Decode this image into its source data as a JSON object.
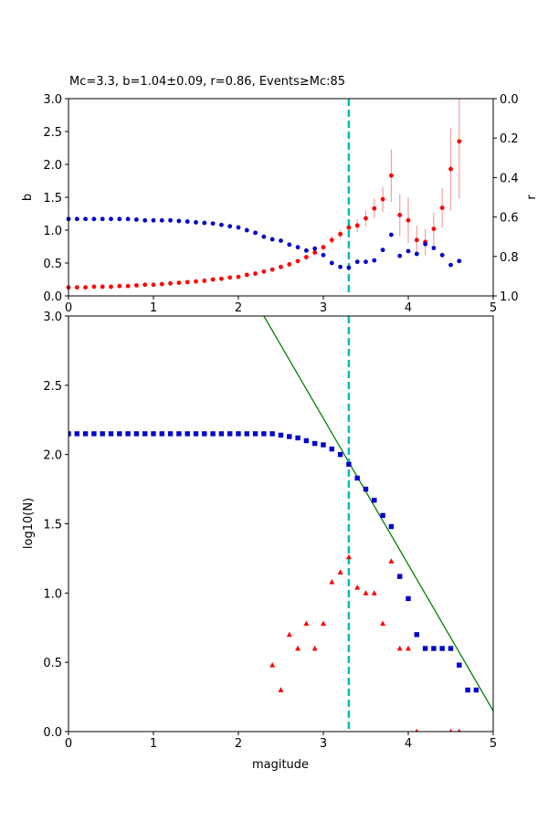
{
  "chart_data": [
    {
      "type": "scatter",
      "title": "Mc=3.3, b=1.04±0.09, r=0.86, Events≥Mc:85",
      "xlabel": "",
      "ylabel": "b",
      "y2label": "r",
      "xlim": [
        0,
        5
      ],
      "ylim": [
        0,
        3
      ],
      "y2lim": [
        1.0,
        0.0
      ],
      "y2_inverted": true,
      "x_ticks": [
        "0",
        "1",
        "2",
        "3",
        "4",
        "5"
      ],
      "y_ticks": [
        "0.0",
        "0.5",
        "1.0",
        "1.5",
        "2.0",
        "2.5",
        "3.0"
      ],
      "y2_ticks": [
        "0.0",
        "0.2",
        "0.4",
        "0.6",
        "0.8",
        "1.0"
      ],
      "mc_line": 3.3,
      "colors": {
        "b": "#ff0000",
        "r": "#0000cc",
        "err": "#f4a0a0",
        "mc": "#00bfbf"
      },
      "series": [
        {
          "name": "b",
          "axis": "left",
          "x": [
            0.0,
            0.1,
            0.2,
            0.3,
            0.4,
            0.5,
            0.6,
            0.7,
            0.8,
            0.9,
            1.0,
            1.1,
            1.2,
            1.3,
            1.4,
            1.5,
            1.6,
            1.7,
            1.8,
            1.9,
            2.0,
            2.1,
            2.2,
            2.3,
            2.4,
            2.5,
            2.6,
            2.7,
            2.8,
            2.9,
            3.0,
            3.1,
            3.2,
            3.3,
            3.4,
            3.5,
            3.6,
            3.7,
            3.8,
            3.9,
            4.0,
            4.1,
            4.2,
            4.3,
            4.4,
            4.5,
            4.6
          ],
          "y": [
            0.13,
            0.13,
            0.13,
            0.14,
            0.14,
            0.14,
            0.15,
            0.15,
            0.16,
            0.17,
            0.17,
            0.18,
            0.19,
            0.2,
            0.21,
            0.22,
            0.23,
            0.25,
            0.26,
            0.28,
            0.29,
            0.32,
            0.34,
            0.37,
            0.4,
            0.44,
            0.48,
            0.53,
            0.59,
            0.66,
            0.74,
            0.85,
            0.94,
            1.04,
            1.07,
            1.18,
            1.33,
            1.47,
            1.83,
            1.23,
            1.15,
            0.85,
            0.82,
            1.02,
            1.34,
            1.93,
            2.35
          ],
          "err": [
            0.01,
            0.01,
            0.01,
            0.01,
            0.01,
            0.01,
            0.01,
            0.01,
            0.01,
            0.01,
            0.01,
            0.01,
            0.01,
            0.01,
            0.01,
            0.01,
            0.01,
            0.01,
            0.01,
            0.01,
            0.01,
            0.01,
            0.02,
            0.02,
            0.02,
            0.02,
            0.02,
            0.03,
            0.03,
            0.04,
            0.05,
            0.06,
            0.07,
            0.09,
            0.1,
            0.12,
            0.15,
            0.19,
            0.4,
            0.32,
            0.35,
            0.22,
            0.2,
            0.25,
            0.3,
            0.63,
            0.87
          ]
        },
        {
          "name": "r",
          "axis": "right",
          "x": [
            0.0,
            0.1,
            0.2,
            0.3,
            0.4,
            0.5,
            0.6,
            0.7,
            0.8,
            0.9,
            1.0,
            1.1,
            1.2,
            1.3,
            1.4,
            1.5,
            1.6,
            1.7,
            1.8,
            1.9,
            2.0,
            2.1,
            2.2,
            2.3,
            2.4,
            2.5,
            2.6,
            2.7,
            2.8,
            2.9,
            3.0,
            3.1,
            3.2,
            3.3,
            3.4,
            3.5,
            3.6,
            3.7,
            3.8,
            3.9,
            4.0,
            4.1,
            4.2,
            4.3,
            4.4,
            4.5,
            4.6
          ],
          "y": [
            0.61,
            0.61,
            0.61,
            0.61,
            0.61,
            0.61,
            0.61,
            0.61,
            0.613,
            0.617,
            0.617,
            0.617,
            0.617,
            0.62,
            0.623,
            0.627,
            0.63,
            0.633,
            0.64,
            0.647,
            0.653,
            0.667,
            0.68,
            0.7,
            0.713,
            0.72,
            0.74,
            0.753,
            0.77,
            0.76,
            0.793,
            0.833,
            0.853,
            0.857,
            0.827,
            0.827,
            0.82,
            0.767,
            0.69,
            0.797,
            0.773,
            0.787,
            0.737,
            0.757,
            0.793,
            0.843,
            0.823
          ]
        }
      ]
    },
    {
      "type": "scatter",
      "title": "",
      "xlabel": "magitude",
      "ylabel": "log10(N)",
      "xlim": [
        0,
        5
      ],
      "ylim": [
        0,
        3
      ],
      "x_ticks": [
        "0",
        "1",
        "2",
        "3",
        "4",
        "5"
      ],
      "y_ticks": [
        "0.0",
        "0.5",
        "1.0",
        "1.5",
        "2.0",
        "2.5",
        "3.0"
      ],
      "mc_line": 3.3,
      "colors": {
        "cumulative": "#0000cc",
        "incremental": "#ff0000",
        "fit": "#008000",
        "mc": "#00bfbf"
      },
      "fit_line": {
        "x": [
          2.3,
          5.0
        ],
        "y": [
          3.0,
          0.15
        ]
      },
      "series": [
        {
          "name": "cumulative",
          "marker": "square",
          "x": [
            0.0,
            0.1,
            0.2,
            0.3,
            0.4,
            0.5,
            0.6,
            0.7,
            0.8,
            0.9,
            1.0,
            1.1,
            1.2,
            1.3,
            1.4,
            1.5,
            1.6,
            1.7,
            1.8,
            1.9,
            2.0,
            2.1,
            2.2,
            2.3,
            2.4,
            2.5,
            2.6,
            2.7,
            2.8,
            2.9,
            3.0,
            3.1,
            3.2,
            3.3,
            3.4,
            3.5,
            3.6,
            3.7,
            3.8,
            3.9,
            4.0,
            4.1,
            4.2,
            4.3,
            4.4,
            4.5,
            4.6,
            4.7,
            4.8
          ],
          "y": [
            2.15,
            2.15,
            2.15,
            2.15,
            2.15,
            2.15,
            2.15,
            2.15,
            2.15,
            2.15,
            2.15,
            2.15,
            2.15,
            2.15,
            2.15,
            2.15,
            2.15,
            2.15,
            2.15,
            2.15,
            2.15,
            2.15,
            2.15,
            2.15,
            2.15,
            2.14,
            2.13,
            2.12,
            2.1,
            2.08,
            2.07,
            2.04,
            2.0,
            1.93,
            1.83,
            1.75,
            1.67,
            1.56,
            1.48,
            1.12,
            0.96,
            0.7,
            0.6,
            0.6,
            0.6,
            0.6,
            0.48,
            0.3,
            0.3
          ]
        },
        {
          "name": "incremental",
          "marker": "triangle",
          "x": [
            2.4,
            2.5,
            2.6,
            2.7,
            2.8,
            2.9,
            3.0,
            3.1,
            3.2,
            3.3,
            3.4,
            3.5,
            3.6,
            3.7,
            3.8,
            3.9,
            4.0,
            4.1,
            4.5,
            4.6
          ],
          "y": [
            0.48,
            0.3,
            0.7,
            0.6,
            0.78,
            0.6,
            0.78,
            1.08,
            1.15,
            1.26,
            1.04,
            1.0,
            1.0,
            0.78,
            1.23,
            0.6,
            0.6,
            0.0,
            0.0,
            0.0
          ]
        }
      ]
    }
  ]
}
